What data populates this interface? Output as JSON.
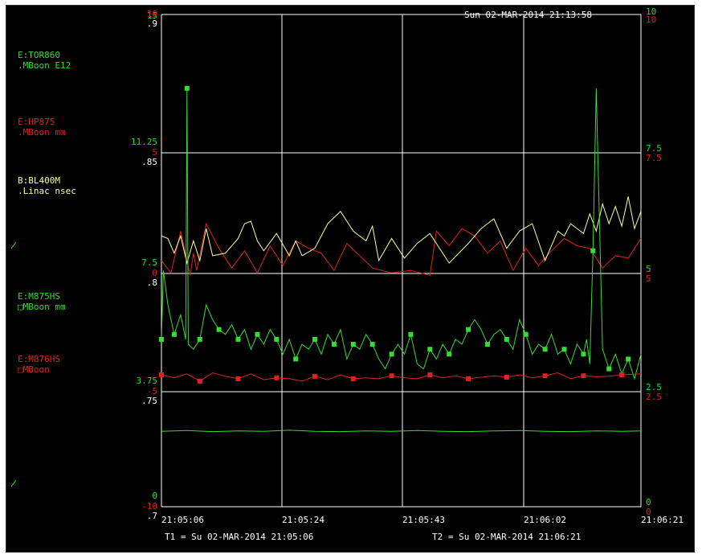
{
  "timestamp": "Sun 02-MAR-2014 21:13:58",
  "footer": {
    "t1": "T1 = Su 02-MAR-2014 21:05:06",
    "t2": "T2 = Su 02-MAR-2014 21:06:21"
  },
  "colors": {
    "background": "#000000",
    "grid": "#ffffff",
    "green": "#22dd22",
    "red": "#dd2222",
    "yellow": "#ffff99",
    "white": "#ffffff"
  },
  "legend": [
    {
      "device": "E:TOR860",
      "units": ".MBoon E12",
      "color": "#33dd33"
    },
    {
      "device": "E:HP875",
      "units": ".MBoon mm",
      "color": "#dd2222"
    },
    {
      "device": "B:BL400M",
      "units": ".Linac nsec",
      "color": "#ffff99"
    },
    {
      "device": "E:M875HS",
      "units": "□MBoon mm",
      "color": "#33dd33"
    },
    {
      "device": "E:M876HS",
      "units": "□MBoon",
      "color": "#dd2222"
    }
  ],
  "left_axis": {
    "green": [
      "15",
      "11.25",
      "7.5",
      "3.75",
      "0"
    ],
    "red": [
      "10",
      "5",
      "0",
      "-5",
      "-10"
    ],
    "white": [
      ".9",
      ".85",
      ".8",
      ".75",
      ".7"
    ]
  },
  "right_axis": {
    "green": [
      "10",
      "7.5",
      "5",
      "2.5",
      "0"
    ],
    "red": [
      "10",
      "7.5",
      "5",
      "2.5",
      "0"
    ]
  },
  "chart_data": {
    "type": "line",
    "x_tick_labels": [
      "21:05:06",
      "21:05:24",
      "21:05:43",
      "21:06:02",
      "21:06:21"
    ],
    "xlim": [
      "21:05:06",
      "21:06:21"
    ],
    "grid": true,
    "series": [
      {
        "name": "E:TOR860",
        "color": "#33dd33",
        "axis": "left-green",
        "ylim": [
          0,
          15
        ],
        "marker": "none",
        "x": [
          0,
          4,
          8,
          12,
          16,
          20,
          24,
          28,
          32,
          36,
          40,
          44,
          48,
          52,
          56,
          60,
          64,
          68,
          72,
          75
        ],
        "y": [
          2.3,
          2.32,
          2.29,
          2.31,
          2.3,
          2.33,
          2.3,
          2.29,
          2.31,
          2.3,
          2.32,
          2.3,
          2.29,
          2.31,
          2.32,
          2.3,
          2.29,
          2.31,
          2.3,
          2.31
        ]
      },
      {
        "name": "E:HP875",
        "color": "#dd2222",
        "axis": "left-red",
        "ylim": [
          -10,
          10
        ],
        "marker": "none",
        "x": [
          0,
          1.5,
          3,
          4.5,
          5,
          5.5,
          7,
          9,
          11,
          13,
          15,
          17,
          19,
          21,
          23,
          25,
          27,
          29,
          31,
          33,
          36,
          39,
          42,
          43,
          45,
          47,
          49,
          51,
          53,
          55,
          57,
          59,
          61,
          63,
          65,
          67,
          69,
          71,
          73,
          75
        ],
        "y": [
          0,
          -0.5,
          1.2,
          -0.6,
          0.3,
          -0.4,
          1.5,
          0.5,
          -0.3,
          0.4,
          -0.5,
          0.6,
          -0.2,
          0.8,
          0.5,
          0.3,
          -0.4,
          0.7,
          0.2,
          -0.3,
          -0.5,
          -0.4,
          -0.6,
          1.2,
          0.6,
          1.3,
          1.0,
          0.3,
          0.8,
          -0.4,
          0.5,
          -0.2,
          0.4,
          0.9,
          0.6,
          0.5,
          -0.3,
          0.2,
          0.1,
          0.9
        ]
      },
      {
        "name": "B:BL400M",
        "color": "#ffff99",
        "axis": "left-white",
        "ylim": [
          0.7,
          0.9
        ],
        "marker": "none",
        "x": [
          0,
          1,
          2,
          3,
          4,
          5,
          6,
          7,
          8,
          10,
          12,
          13,
          14,
          15,
          16,
          18,
          20,
          21,
          22,
          24,
          26,
          28,
          30,
          32,
          33,
          34,
          36,
          38,
          40,
          42,
          45,
          48,
          50,
          52,
          54,
          56,
          58,
          60,
          62,
          63,
          64,
          66,
          67,
          68,
          69,
          70,
          71,
          72,
          73,
          74,
          75
        ],
        "y": [
          0.81,
          0.809,
          0.803,
          0.81,
          0.799,
          0.808,
          0.8,
          0.813,
          0.802,
          0.803,
          0.809,
          0.815,
          0.816,
          0.808,
          0.804,
          0.811,
          0.802,
          0.808,
          0.802,
          0.805,
          0.815,
          0.82,
          0.812,
          0.808,
          0.814,
          0.8,
          0.809,
          0.801,
          0.807,
          0.811,
          0.799,
          0.807,
          0.813,
          0.817,
          0.805,
          0.812,
          0.815,
          0.8,
          0.812,
          0.81,
          0.815,
          0.811,
          0.819,
          0.812,
          0.823,
          0.815,
          0.822,
          0.814,
          0.826,
          0.813,
          0.82
        ]
      },
      {
        "name": "E:M875HS",
        "color": "#33dd33",
        "axis": "right-green",
        "ylim": [
          0,
          10
        ],
        "marker": "square",
        "x": [
          0,
          0.3,
          1,
          2,
          3,
          3.8,
          4,
          4.2,
          5,
          6,
          7,
          8,
          9,
          10,
          11,
          12,
          13,
          14,
          15,
          16,
          17,
          18,
          19,
          20,
          21,
          22,
          23,
          24,
          25,
          26,
          27,
          28,
          29,
          30,
          31,
          32,
          33,
          34,
          35,
          36,
          37,
          38,
          39,
          40,
          41,
          42,
          43,
          44,
          45,
          46,
          47,
          48,
          49,
          50,
          51,
          52,
          53,
          54,
          55,
          56,
          57,
          58,
          59,
          60,
          61,
          62,
          63,
          64,
          65,
          66,
          66.5,
          67,
          67.5,
          68,
          69,
          70,
          71,
          72,
          73,
          74,
          75
        ],
        "y": [
          3.4,
          4.8,
          4.1,
          3.5,
          3.9,
          3.4,
          8.5,
          3.3,
          3.2,
          3.4,
          4.1,
          3.8,
          3.6,
          3.5,
          3.7,
          3.4,
          3.6,
          3.2,
          3.5,
          3.3,
          3.6,
          3.4,
          3.1,
          3.4,
          3.0,
          3.3,
          3.2,
          3.4,
          3.1,
          3.5,
          3.3,
          3.6,
          3.0,
          3.3,
          3.2,
          3.5,
          3.3,
          3.0,
          2.8,
          3.1,
          3.3,
          3.1,
          3.5,
          2.9,
          2.8,
          3.2,
          3.0,
          3.3,
          3.1,
          3.4,
          3.3,
          3.6,
          3.8,
          3.6,
          3.3,
          3.5,
          3.6,
          3.4,
          3.2,
          3.8,
          3.5,
          3.1,
          3.3,
          3.2,
          3.5,
          3.1,
          3.2,
          2.9,
          3.3,
          3.1,
          3.4,
          2.9,
          5.2,
          8.5,
          3.2,
          2.8,
          3.1,
          2.7,
          3.0,
          2.6,
          3.1
        ]
      },
      {
        "name": "E:M876HS",
        "color": "#dd2222",
        "axis": "right-red",
        "ylim": [
          0,
          10
        ],
        "marker": "square",
        "x": [
          0,
          2,
          4,
          6,
          8,
          10,
          12,
          14,
          16,
          18,
          20,
          22,
          24,
          26,
          28,
          30,
          32,
          34,
          36,
          38,
          40,
          42,
          44,
          46,
          48,
          50,
          52,
          54,
          56,
          58,
          60,
          62,
          64,
          66,
          68,
          70,
          72,
          75
        ],
        "y": [
          2.68,
          2.62,
          2.7,
          2.55,
          2.72,
          2.65,
          2.6,
          2.7,
          2.58,
          2.62,
          2.6,
          2.55,
          2.65,
          2.58,
          2.68,
          2.6,
          2.62,
          2.6,
          2.66,
          2.62,
          2.6,
          2.68,
          2.62,
          2.66,
          2.6,
          2.63,
          2.66,
          2.63,
          2.68,
          2.62,
          2.66,
          2.72,
          2.6,
          2.66,
          2.64,
          2.65,
          2.68,
          2.7
        ]
      }
    ]
  }
}
